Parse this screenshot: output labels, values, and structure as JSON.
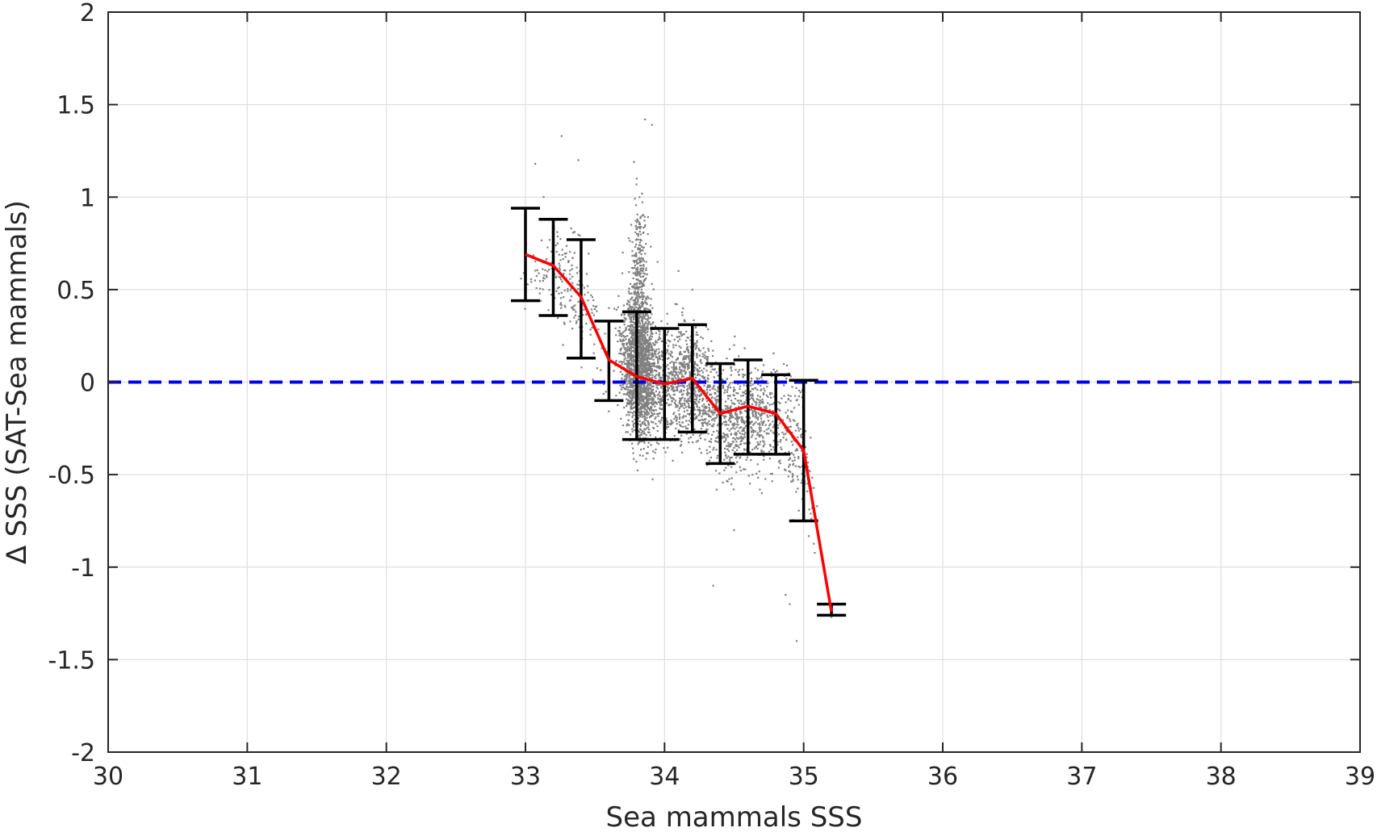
{
  "chart_data": {
    "type": "scatter",
    "title": "",
    "xlabel": "Sea mammals SSS",
    "ylabel": "∆ SSS (SAT-Sea mammals)",
    "xlim": [
      30,
      39
    ],
    "ylim": [
      -2,
      2
    ],
    "xticks": [
      30,
      31,
      32,
      33,
      34,
      35,
      36,
      37,
      38,
      39
    ],
    "xtick_labels": [
      "30",
      "31",
      "32",
      "33",
      "34",
      "35",
      "36",
      "37",
      "38",
      "39"
    ],
    "yticks": [
      2,
      1.5,
      1,
      0.5,
      0,
      -0.5,
      -1,
      -1.5,
      -2
    ],
    "ytick_labels": [
      "2",
      "1.5",
      "1",
      "0.5",
      "0",
      "-0.5",
      "-1",
      "-1.5",
      "-2"
    ],
    "grid": true,
    "reference_line": {
      "y": 0,
      "style": "dashed",
      "color": "#0000e6"
    },
    "scatter_color": "#808080",
    "scatter_note": "dense cloud of individual match-up points, roughly 33.0–35.1 in x",
    "scatter_sample": [
      [
        33.07,
        1.18
      ],
      [
        33.26,
        1.33
      ],
      [
        33.38,
        1.2
      ],
      [
        33.86,
        1.42
      ],
      [
        33.91,
        1.39
      ],
      [
        33.78,
        1.19
      ],
      [
        33.8,
        1.1
      ],
      [
        33.82,
        1.0
      ],
      [
        33.84,
        0.9
      ],
      [
        33.76,
        0.85
      ],
      [
        33.88,
        0.8
      ],
      [
        33.7,
        0.7
      ],
      [
        33.95,
        0.65
      ],
      [
        34.1,
        0.6
      ],
      [
        34.2,
        0.5
      ],
      [
        33.6,
        0.4
      ],
      [
        34.3,
        0.3
      ],
      [
        34.5,
        0.2
      ],
      [
        34.6,
        0.1
      ],
      [
        34.8,
        0.0
      ],
      [
        34.9,
        -0.2
      ],
      [
        35.05,
        -0.3
      ],
      [
        35.0,
        -0.5
      ],
      [
        34.7,
        -0.6
      ],
      [
        34.5,
        -0.8
      ],
      [
        34.35,
        -1.1
      ],
      [
        34.87,
        -1.15
      ],
      [
        34.9,
        -1.2
      ],
      [
        34.95,
        -1.4
      ],
      [
        35.2,
        -1.27
      ]
    ],
    "series": [
      {
        "style": "line",
        "color": "#ff0000",
        "x": [
          33.0,
          33.2,
          33.4,
          33.6,
          33.8,
          34.0,
          34.2,
          34.4,
          34.6,
          34.8,
          35.0,
          35.2
        ],
        "values": [
          0.69,
          0.63,
          0.46,
          0.12,
          0.03,
          -0.01,
          0.02,
          -0.17,
          -0.13,
          -0.17,
          -0.37,
          -1.24
        ]
      },
      {
        "style": "errorbar",
        "color": "#000000",
        "x": [
          33.0,
          33.2,
          33.4,
          33.6,
          33.8,
          34.0,
          34.2,
          34.4,
          34.6,
          34.8,
          35.0,
          35.2
        ],
        "upper": [
          0.94,
          0.88,
          0.77,
          0.33,
          0.38,
          0.29,
          0.31,
          0.1,
          0.12,
          0.04,
          0.01,
          -1.2
        ],
        "lower": [
          0.44,
          0.36,
          0.13,
          -0.1,
          -0.31,
          -0.31,
          -0.27,
          -0.44,
          -0.39,
          -0.39,
          -0.75,
          -1.26
        ]
      }
    ]
  }
}
